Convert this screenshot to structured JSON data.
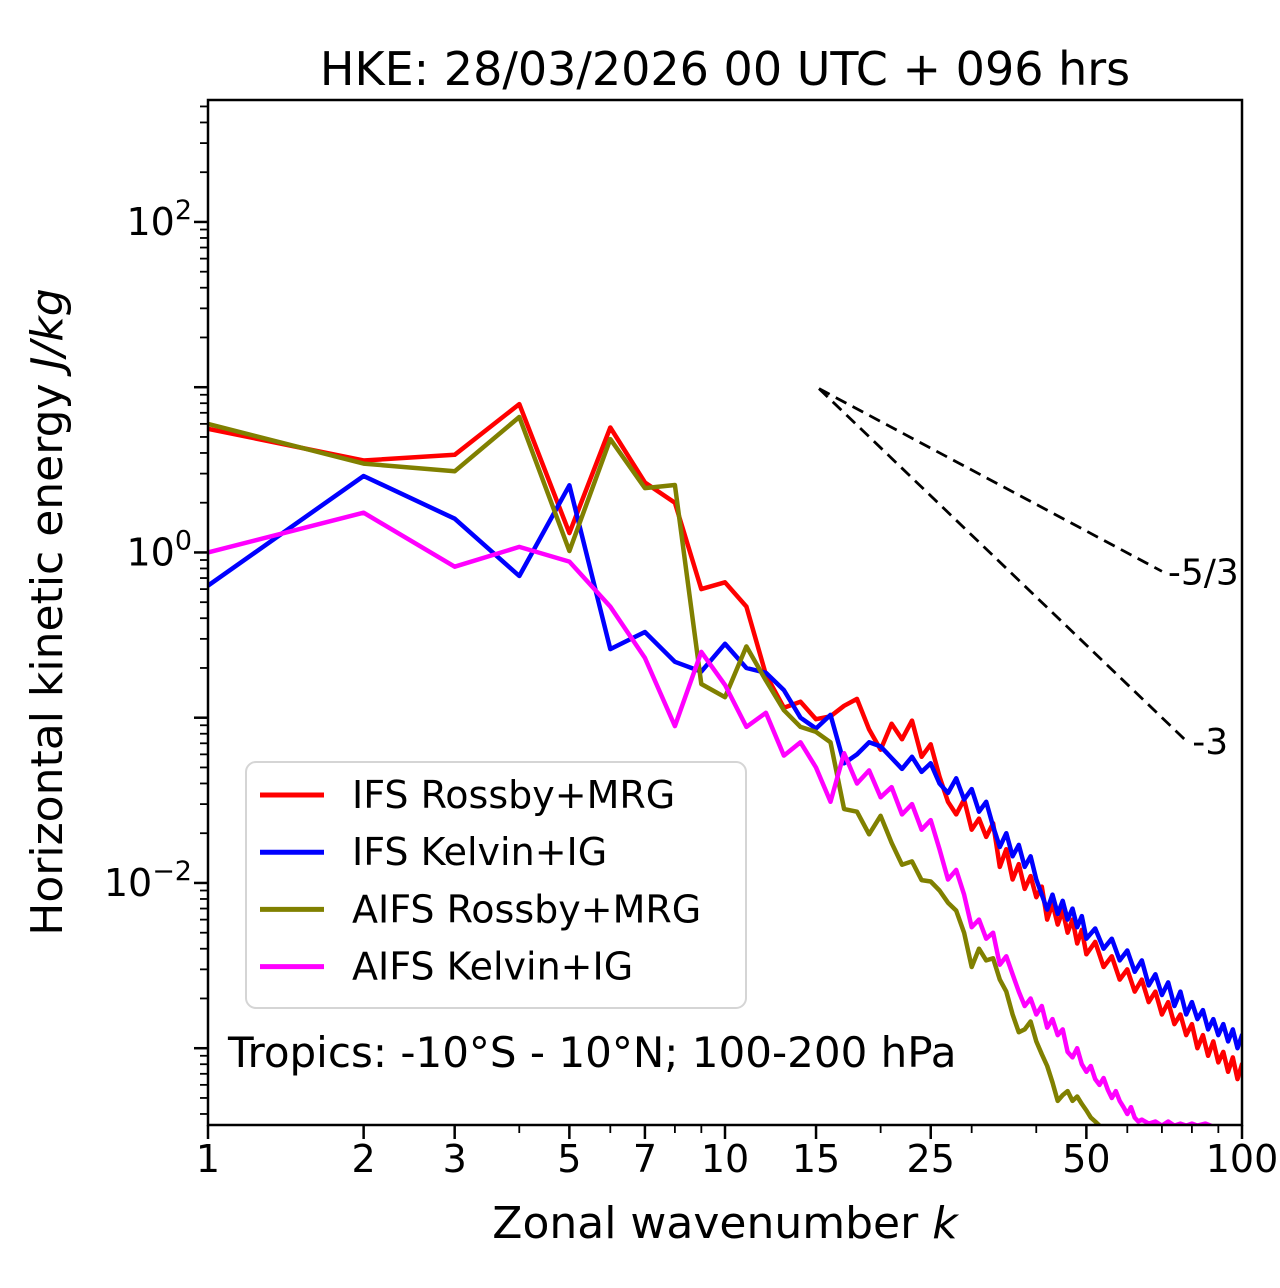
{
  "chart_data": {
    "type": "line",
    "title": "HKE: 28/03/2026 00 UTC + 096 hrs",
    "xlabel": {
      "text": "Zonal wavenumber ",
      "math": "k"
    },
    "ylabel": {
      "text": "Horizontal kinetic energy ",
      "math": "J/kg"
    },
    "x_scale": "log",
    "y_scale": "log",
    "xlim": [
      1,
      100
    ],
    "ylim": [
      0.000343,
      547
    ],
    "grid": false,
    "legend_position": "lower left",
    "annotation": "Tropics: -10°S - 10°N; 100-200 hPa",
    "x_major_ticks": [
      {
        "value": 1,
        "label": "1"
      },
      {
        "value": 2,
        "label": "2"
      },
      {
        "value": 3,
        "label": "3"
      },
      {
        "value": 5,
        "label": "5"
      },
      {
        "value": 7,
        "label": "7"
      },
      {
        "value": 10,
        "label": "10"
      },
      {
        "value": 15,
        "label": "15"
      },
      {
        "value": 25,
        "label": "25"
      },
      {
        "value": 50,
        "label": "50"
      },
      {
        "value": 100,
        "label": "100"
      }
    ],
    "x_minor_ticks": [
      4,
      6,
      8,
      9,
      20,
      30,
      40,
      60,
      70,
      80,
      90
    ],
    "y_major_ticks": [
      {
        "exp": 2,
        "label_base": "10",
        "label_exp": "2"
      },
      {
        "exp": 1
      },
      {
        "exp": 0,
        "label_base": "10",
        "label_exp": "0"
      },
      {
        "exp": -1
      },
      {
        "exp": -2,
        "label_base": "10",
        "label_exp": "−2"
      },
      {
        "exp": -3
      }
    ],
    "y_minor_subs": [
      2,
      3,
      4,
      5,
      6,
      7,
      8,
      9
    ],
    "reference_lines": [
      {
        "label": "-5/3",
        "slope": -1.667,
        "points": [
          [
            15.2,
            9.8
          ],
          [
            70,
            0.769
          ]
        ]
      },
      {
        "label": "-3",
        "slope": -3,
        "points": [
          [
            15.2,
            9.8
          ],
          [
            78,
            0.0724
          ]
        ]
      }
    ],
    "series": [
      {
        "name": "IFS Rossby+MRG",
        "color": "#ff0000",
        "points": [
          [
            1,
            5.6
          ],
          [
            2,
            3.6
          ],
          [
            3,
            3.9
          ],
          [
            4,
            7.9
          ],
          [
            5,
            1.31
          ],
          [
            6,
            5.7
          ],
          [
            7,
            2.65
          ],
          [
            8,
            2.0
          ],
          [
            9,
            0.6
          ],
          [
            10,
            0.66
          ],
          [
            11,
            0.47
          ],
          [
            12,
            0.182
          ],
          [
            13,
            0.115
          ],
          [
            14,
            0.125
          ],
          [
            15,
            0.098
          ],
          [
            16,
            0.102
          ],
          [
            17,
            0.118
          ],
          [
            18,
            0.13
          ],
          [
            19,
            0.085
          ],
          [
            20,
            0.064
          ],
          [
            21,
            0.092
          ],
          [
            22,
            0.074
          ],
          [
            23,
            0.096
          ],
          [
            24,
            0.058
          ],
          [
            25,
            0.069
          ],
          [
            26,
            0.044
          ],
          [
            27,
            0.031
          ],
          [
            28,
            0.026
          ],
          [
            29,
            0.032
          ],
          [
            30,
            0.021
          ],
          [
            31,
            0.0245
          ],
          [
            32,
            0.019
          ],
          [
            33,
            0.023
          ],
          [
            34,
            0.0125
          ],
          [
            35,
            0.016
          ],
          [
            36,
            0.0105
          ],
          [
            37,
            0.013
          ],
          [
            38,
            0.0092
          ],
          [
            39,
            0.011
          ],
          [
            40,
            0.0082
          ],
          [
            41,
            0.0095
          ],
          [
            42,
            0.006
          ],
          [
            43,
            0.0075
          ],
          [
            44,
            0.0056
          ],
          [
            45,
            0.0068
          ],
          [
            46,
            0.005
          ],
          [
            47,
            0.006
          ],
          [
            48,
            0.0043
          ],
          [
            49,
            0.0052
          ],
          [
            50,
            0.0037
          ],
          [
            52,
            0.0044
          ],
          [
            54,
            0.0031
          ],
          [
            56,
            0.0036
          ],
          [
            58,
            0.0026
          ],
          [
            60,
            0.003
          ],
          [
            62,
            0.0022
          ],
          [
            64,
            0.0026
          ],
          [
            66,
            0.0019
          ],
          [
            68,
            0.0022
          ],
          [
            70,
            0.0016
          ],
          [
            72,
            0.0019
          ],
          [
            74,
            0.0014
          ],
          [
            76,
            0.0016
          ],
          [
            78,
            0.0012
          ],
          [
            80,
            0.0014
          ],
          [
            82,
            0.001
          ],
          [
            84,
            0.0012
          ],
          [
            86,
            0.0009
          ],
          [
            88,
            0.0011
          ],
          [
            90,
            0.00082
          ],
          [
            92,
            0.00095
          ],
          [
            94,
            0.00072
          ],
          [
            96,
            0.00088
          ],
          [
            98,
            0.00065
          ],
          [
            100,
            0.0008
          ]
        ]
      },
      {
        "name": "IFS Kelvin+IG",
        "color": "#0000ff",
        "points": [
          [
            1,
            0.63
          ],
          [
            2,
            2.9
          ],
          [
            3,
            1.6
          ],
          [
            4,
            0.72
          ],
          [
            5,
            2.55
          ],
          [
            6,
            0.26
          ],
          [
            7,
            0.33
          ],
          [
            8,
            0.218
          ],
          [
            9,
            0.19
          ],
          [
            10,
            0.28
          ],
          [
            11,
            0.2
          ],
          [
            12,
            0.187
          ],
          [
            13,
            0.147
          ],
          [
            14,
            0.1
          ],
          [
            15,
            0.086
          ],
          [
            16,
            0.104
          ],
          [
            17,
            0.053
          ],
          [
            18,
            0.06
          ],
          [
            19,
            0.071
          ],
          [
            20,
            0.067
          ],
          [
            21,
            0.057
          ],
          [
            22,
            0.049
          ],
          [
            23,
            0.058
          ],
          [
            24,
            0.047
          ],
          [
            25,
            0.053
          ],
          [
            26,
            0.04
          ],
          [
            27,
            0.035
          ],
          [
            28,
            0.043
          ],
          [
            29,
            0.032
          ],
          [
            30,
            0.037
          ],
          [
            31,
            0.027
          ],
          [
            32,
            0.031
          ],
          [
            33,
            0.022
          ],
          [
            34,
            0.0165
          ],
          [
            35,
            0.02
          ],
          [
            36,
            0.0145
          ],
          [
            37,
            0.017
          ],
          [
            38,
            0.0125
          ],
          [
            39,
            0.0145
          ],
          [
            40,
            0.0105
          ],
          [
            42,
            0.0069
          ],
          [
            43,
            0.0085
          ],
          [
            44,
            0.0065
          ],
          [
            45,
            0.0078
          ],
          [
            46,
            0.006
          ],
          [
            47,
            0.007
          ],
          [
            48,
            0.0054
          ],
          [
            49,
            0.0063
          ],
          [
            50,
            0.0046
          ],
          [
            52,
            0.0053
          ],
          [
            54,
            0.004
          ],
          [
            56,
            0.0046
          ],
          [
            58,
            0.0034
          ],
          [
            60,
            0.0039
          ],
          [
            62,
            0.0029
          ],
          [
            64,
            0.0034
          ],
          [
            66,
            0.0024
          ],
          [
            68,
            0.0028
          ],
          [
            70,
            0.0021
          ],
          [
            72,
            0.0025
          ],
          [
            74,
            0.0018
          ],
          [
            76,
            0.0022
          ],
          [
            78,
            0.0016
          ],
          [
            80,
            0.0019
          ],
          [
            82,
            0.0015
          ],
          [
            84,
            0.0017
          ],
          [
            86,
            0.0013
          ],
          [
            88,
            0.0015
          ],
          [
            90,
            0.0012
          ],
          [
            92,
            0.0014
          ],
          [
            94,
            0.0011
          ],
          [
            96,
            0.0013
          ],
          [
            98,
            0.001
          ],
          [
            100,
            0.0012
          ]
        ]
      },
      {
        "name": "AIFS Rossby+MRG",
        "color": "#808000",
        "points": [
          [
            1,
            6.0
          ],
          [
            2,
            3.45
          ],
          [
            3,
            3.1
          ],
          [
            4,
            6.6
          ],
          [
            5,
            1.02
          ],
          [
            6,
            4.85
          ],
          [
            7,
            2.45
          ],
          [
            8,
            2.56
          ],
          [
            9,
            0.16
          ],
          [
            10,
            0.133
          ],
          [
            11,
            0.27
          ],
          [
            12,
            0.168
          ],
          [
            13,
            0.111
          ],
          [
            14,
            0.088
          ],
          [
            15,
            0.082
          ],
          [
            16,
            0.071
          ],
          [
            17,
            0.028
          ],
          [
            18,
            0.027
          ],
          [
            19,
            0.0197
          ],
          [
            20,
            0.0255
          ],
          [
            21,
            0.0175
          ],
          [
            22,
            0.0129
          ],
          [
            23,
            0.0135
          ],
          [
            24,
            0.0104
          ],
          [
            25,
            0.0102
          ],
          [
            26,
            0.009
          ],
          [
            27,
            0.0076
          ],
          [
            28,
            0.0068
          ],
          [
            29,
            0.005
          ],
          [
            30,
            0.0031
          ],
          [
            31,
            0.004
          ],
          [
            32,
            0.0034
          ],
          [
            33,
            0.0035
          ],
          [
            34,
            0.0026
          ],
          [
            35,
            0.0022
          ],
          [
            36,
            0.0016
          ],
          [
            37,
            0.00125
          ],
          [
            38,
            0.0013
          ],
          [
            39,
            0.00145
          ],
          [
            40,
            0.0011
          ],
          [
            41,
            0.00092
          ],
          [
            42,
            0.00078
          ],
          [
            43,
            0.00062
          ],
          [
            44,
            0.00048
          ],
          [
            45,
            0.00052
          ],
          [
            46,
            0.00055
          ],
          [
            47,
            0.00048
          ],
          [
            48,
            0.00051
          ],
          [
            49,
            0.00046
          ],
          [
            50,
            0.00042
          ],
          [
            51,
            0.00038
          ],
          [
            52,
            0.00036
          ],
          [
            53,
            0.00034
          ]
        ]
      },
      {
        "name": "AIFS Kelvin+IG",
        "color": "#ff00ff",
        "points": [
          [
            1,
            1.0
          ],
          [
            2,
            1.74
          ],
          [
            3,
            0.82
          ],
          [
            4,
            1.08
          ],
          [
            5,
            0.88
          ],
          [
            6,
            0.47
          ],
          [
            7,
            0.23
          ],
          [
            8,
            0.089
          ],
          [
            9,
            0.25
          ],
          [
            10,
            0.158
          ],
          [
            11,
            0.088
          ],
          [
            12,
            0.107
          ],
          [
            13,
            0.059
          ],
          [
            14,
            0.071
          ],
          [
            15,
            0.05
          ],
          [
            16,
            0.031
          ],
          [
            17,
            0.061
          ],
          [
            18,
            0.04
          ],
          [
            19,
            0.048
          ],
          [
            20,
            0.033
          ],
          [
            21,
            0.038
          ],
          [
            22,
            0.026
          ],
          [
            23,
            0.03
          ],
          [
            24,
            0.021
          ],
          [
            25,
            0.024
          ],
          [
            26,
            0.016
          ],
          [
            27,
            0.0105
          ],
          [
            28,
            0.012
          ],
          [
            29,
            0.0085
          ],
          [
            30,
            0.0054
          ],
          [
            31,
            0.006
          ],
          [
            32,
            0.0046
          ],
          [
            33,
            0.005
          ],
          [
            34,
            0.0032
          ],
          [
            35,
            0.0036
          ],
          [
            36,
            0.0028
          ],
          [
            37,
            0.0022
          ],
          [
            38,
            0.0018
          ],
          [
            39,
            0.002
          ],
          [
            40,
            0.0016
          ],
          [
            41,
            0.0018
          ],
          [
            42,
            0.00133
          ],
          [
            43,
            0.0015
          ],
          [
            44,
            0.0012
          ],
          [
            45,
            0.0013
          ],
          [
            46,
            0.00095
          ],
          [
            47,
            0.00088
          ],
          [
            48,
            0.001
          ],
          [
            49,
            0.0008
          ],
          [
            50,
            0.00072
          ],
          [
            51,
            0.00078
          ],
          [
            52,
            0.00065
          ],
          [
            53,
            0.0006
          ],
          [
            54,
            0.00066
          ],
          [
            55,
            0.00056
          ],
          [
            56,
            0.0005
          ],
          [
            57,
            0.00055
          ],
          [
            58,
            0.00048
          ],
          [
            59,
            0.00044
          ],
          [
            60,
            0.0004
          ],
          [
            61,
            0.00044
          ],
          [
            62,
            0.00038
          ],
          [
            63,
            0.00036
          ],
          [
            64,
            0.00037
          ],
          [
            66,
            0.00035
          ],
          [
            68,
            0.00036
          ],
          [
            70,
            0.00034
          ],
          [
            72,
            0.00036
          ],
          [
            74,
            0.00034
          ],
          [
            76,
            0.00035
          ],
          [
            78,
            0.00034
          ],
          [
            80,
            0.00035
          ],
          [
            82,
            0.00034
          ],
          [
            85,
            0.00035
          ],
          [
            87,
            0.00034
          ]
        ]
      }
    ],
    "legend": [
      {
        "label": "IFS Rossby+MRG",
        "color": "#ff0000"
      },
      {
        "label": "IFS Kelvin+IG",
        "color": "#0000ff"
      },
      {
        "label": "AIFS Rossby+MRG",
        "color": "#808000"
      },
      {
        "label": "AIFS Kelvin+IG",
        "color": "#ff00ff"
      }
    ]
  }
}
